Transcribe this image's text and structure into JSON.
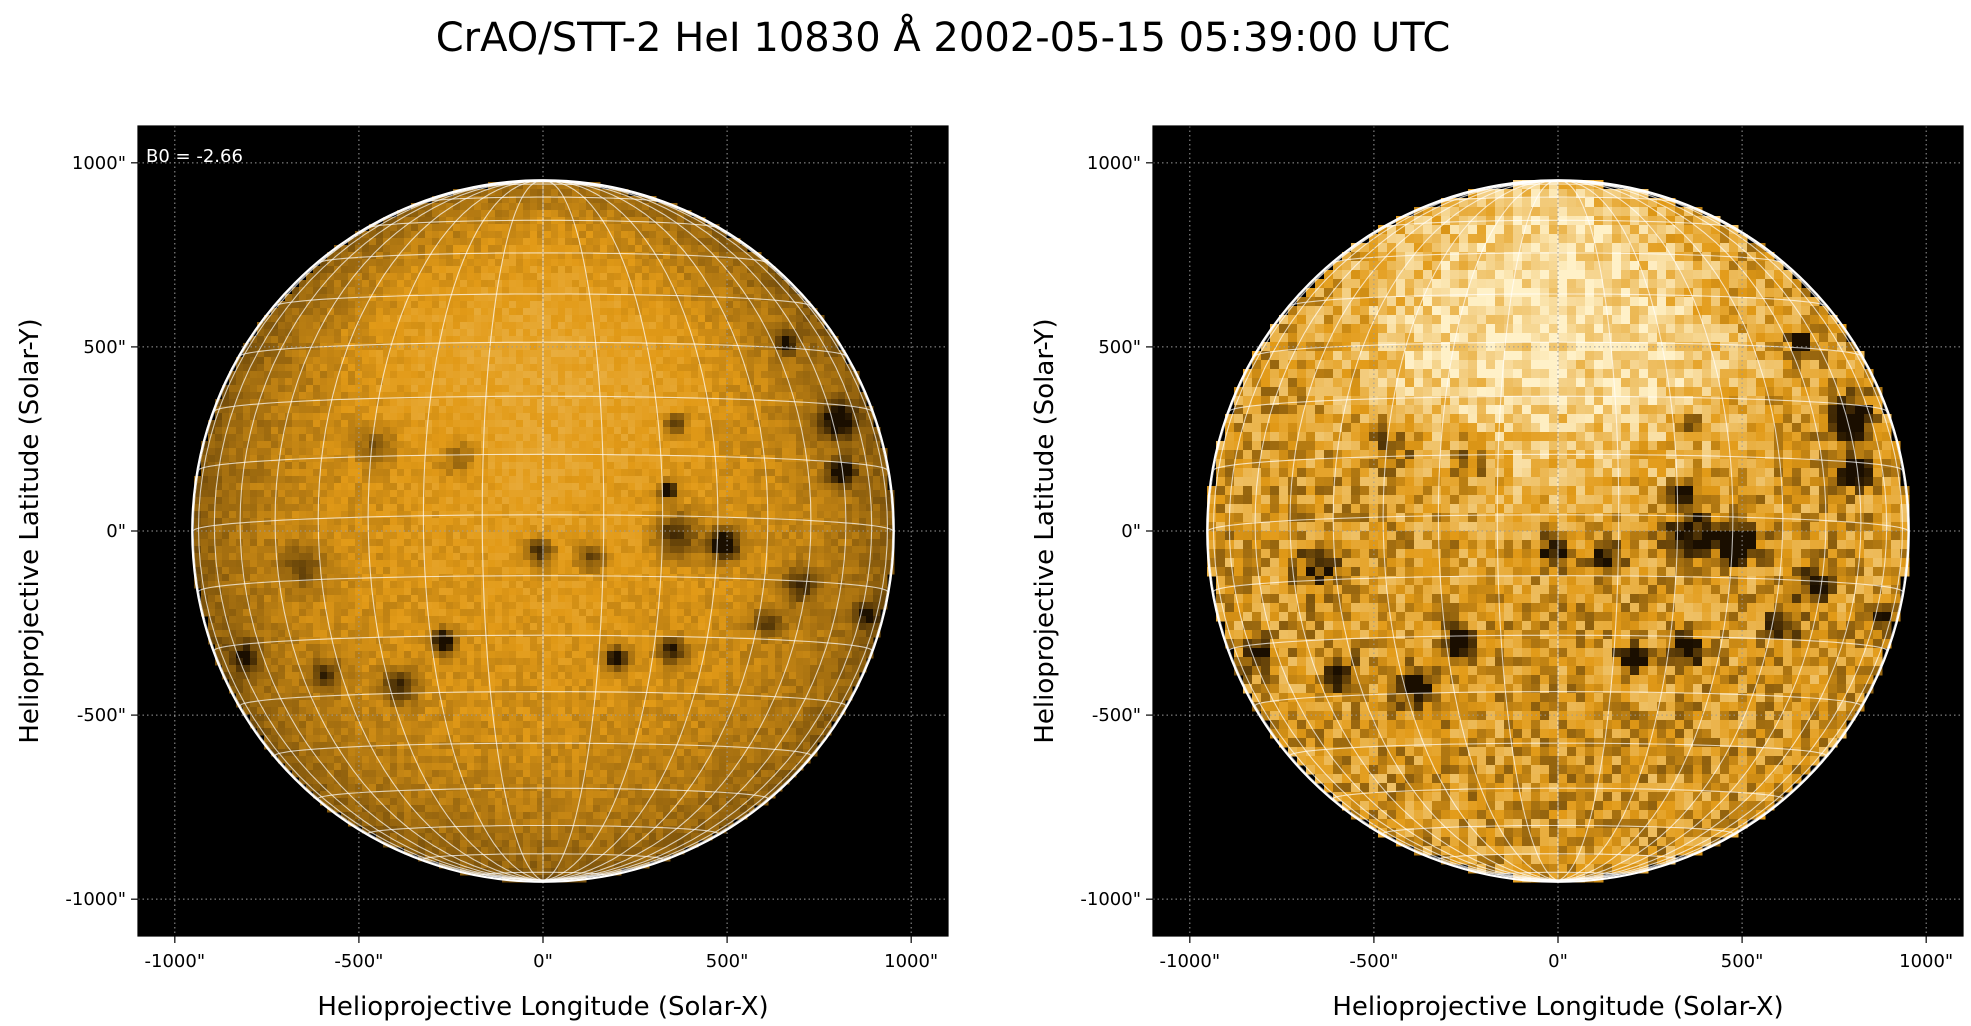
{
  "title": "CrAO/STT-2 HeI 10830 Å 2002-05-15 05:39:00 UTC",
  "colors": {
    "sun_base": "#e29a17",
    "sun_dark": "#1a0e00",
    "sun_bright": "#fff1c8",
    "background": "#000000",
    "limb": "#ffffff"
  },
  "axes": {
    "xlabel": "Helioprojective Longitude (Solar-X)",
    "ylabel": "Helioprojective Latitude (Solar-Y)",
    "xticks": [
      "-1000\"",
      "-500\"",
      "0\"",
      "500\"",
      "1000\""
    ],
    "yticks": [
      "1000\"",
      "500\"",
      "0\"",
      "-500\"",
      "-1000\""
    ],
    "tick_values": [
      -1000,
      -500,
      0,
      500,
      1000
    ],
    "yticks_values": [
      1000,
      500,
      0,
      -500,
      -1000
    ],
    "xlim": [
      -1100,
      1100
    ],
    "ylim": [
      -1100,
      1100
    ],
    "solar_radius_arcsec": 950
  },
  "panels": [
    {
      "name": "raw",
      "annotation": "B0 = -2.66",
      "contrast": "normal"
    },
    {
      "name": "enhanced",
      "annotation": "",
      "contrast": "enhanced"
    }
  ],
  "features": [
    {
      "x": 490,
      "y": -35,
      "r": 32,
      "strength": 1.0
    },
    {
      "x": -270,
      "y": -300,
      "r": 24,
      "strength": 1.0
    },
    {
      "x": 200,
      "y": -345,
      "r": 22,
      "strength": 0.9
    },
    {
      "x": 350,
      "y": -325,
      "r": 26,
      "strength": 0.7
    },
    {
      "x": 340,
      "y": 110,
      "r": 18,
      "strength": 0.9
    },
    {
      "x": 810,
      "y": 160,
      "r": 26,
      "strength": 0.9
    },
    {
      "x": 800,
      "y": 300,
      "r": 36,
      "strength": 0.8
    },
    {
      "x": 660,
      "y": 510,
      "r": 22,
      "strength": 0.7
    },
    {
      "x": 360,
      "y": -10,
      "r": 45,
      "strength": 0.6
    },
    {
      "x": -10,
      "y": -55,
      "r": 30,
      "strength": 0.6
    },
    {
      "x": 130,
      "y": -70,
      "r": 30,
      "strength": 0.5
    },
    {
      "x": -390,
      "y": -420,
      "r": 34,
      "strength": 0.6
    },
    {
      "x": -590,
      "y": -390,
      "r": 30,
      "strength": 0.5
    },
    {
      "x": -650,
      "y": -100,
      "r": 40,
      "strength": 0.4
    },
    {
      "x": -810,
      "y": -340,
      "r": 30,
      "strength": 0.5
    },
    {
      "x": 700,
      "y": -150,
      "r": 34,
      "strength": 0.5
    },
    {
      "x": 610,
      "y": -250,
      "r": 30,
      "strength": 0.45
    },
    {
      "x": 880,
      "y": -230,
      "r": 26,
      "strength": 0.5
    },
    {
      "x": 360,
      "y": 290,
      "r": 22,
      "strength": 0.55
    },
    {
      "x": -450,
      "y": 230,
      "r": 40,
      "strength": 0.35
    },
    {
      "x": -230,
      "y": 200,
      "r": 40,
      "strength": 0.3
    }
  ],
  "bright_regions": [
    {
      "x": 0,
      "y": 720,
      "r": 330,
      "strength": 0.55
    },
    {
      "x": -350,
      "y": 500,
      "r": 260,
      "strength": 0.35
    },
    {
      "x": 320,
      "y": 450,
      "r": 230,
      "strength": 0.3
    },
    {
      "x": 0,
      "y": 250,
      "r": 280,
      "strength": 0.25
    }
  ]
}
